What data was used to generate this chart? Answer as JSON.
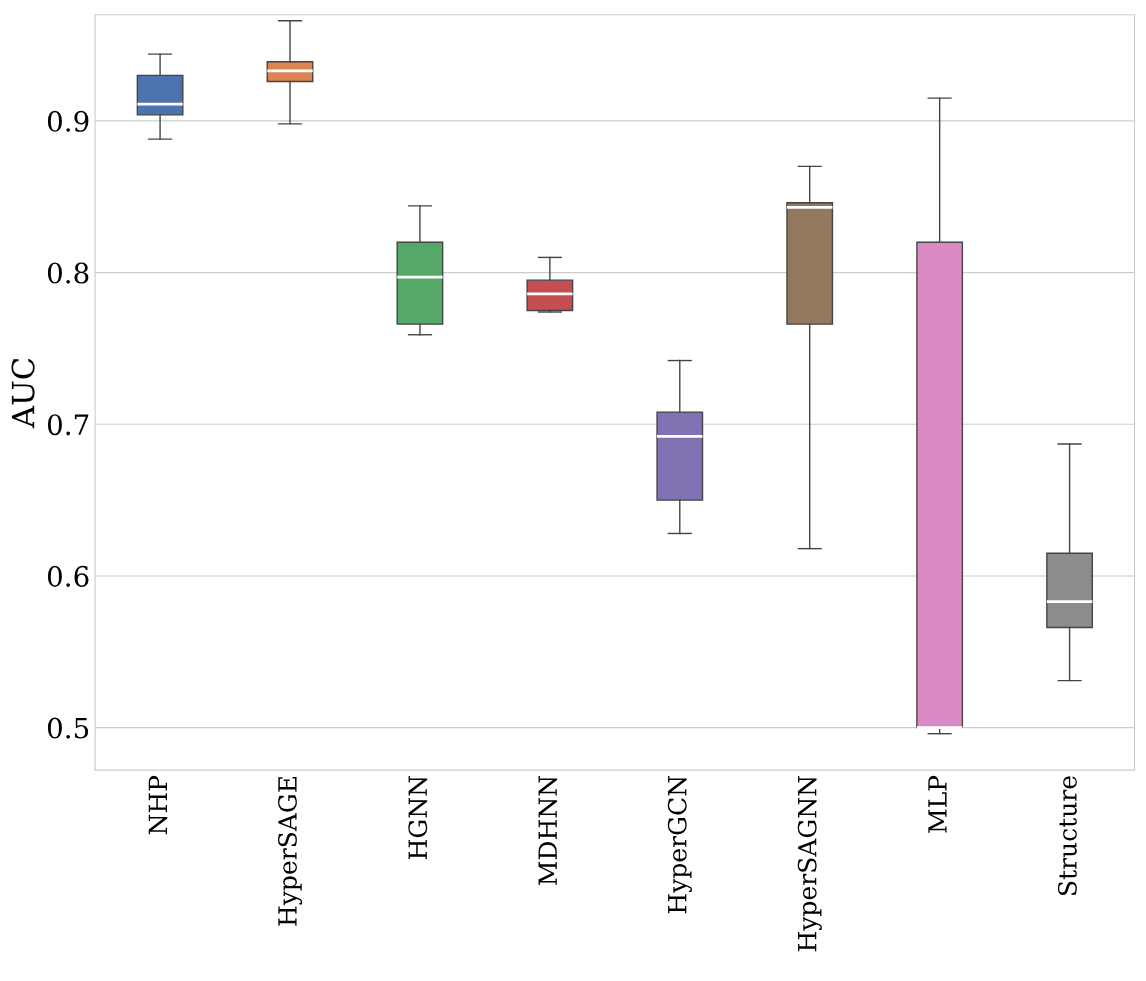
{
  "chart_data": {
    "type": "box",
    "ylabel": "AUC",
    "categories": [
      "NHP",
      "HyperSAGE",
      "HGNN",
      "MDHNN",
      "HyperGCN",
      "HyperSAGNN",
      "MLP",
      "Structure"
    ],
    "colors": [
      "#4c72b0",
      "#dd8452",
      "#55a868",
      "#c44e52",
      "#8172b3",
      "#937860",
      "#da8bc3",
      "#8c8c8c"
    ],
    "boxes": [
      {
        "low": 0.888,
        "q1": 0.904,
        "median": 0.911,
        "q3": 0.93,
        "high": 0.944
      },
      {
        "low": 0.898,
        "q1": 0.926,
        "median": 0.933,
        "q3": 0.939,
        "high": 0.966
      },
      {
        "low": 0.759,
        "q1": 0.766,
        "median": 0.797,
        "q3": 0.82,
        "high": 0.844
      },
      {
        "low": 0.774,
        "q1": 0.775,
        "median": 0.786,
        "q3": 0.795,
        "high": 0.81
      },
      {
        "low": 0.628,
        "q1": 0.65,
        "median": 0.692,
        "q3": 0.708,
        "high": 0.742
      },
      {
        "low": 0.618,
        "q1": 0.766,
        "median": 0.843,
        "q3": 0.846,
        "high": 0.87
      },
      {
        "low": 0.496,
        "q1": 0.5,
        "median": 0.5,
        "q3": 0.82,
        "high": 0.915
      },
      {
        "low": 0.531,
        "q1": 0.566,
        "median": 0.583,
        "q3": 0.615,
        "high": 0.687
      }
    ],
    "ylim": [
      0.472,
      0.97
    ],
    "yticks": [
      0.5,
      0.6,
      0.7,
      0.8,
      0.9
    ],
    "grid": "y",
    "legend": false
  }
}
